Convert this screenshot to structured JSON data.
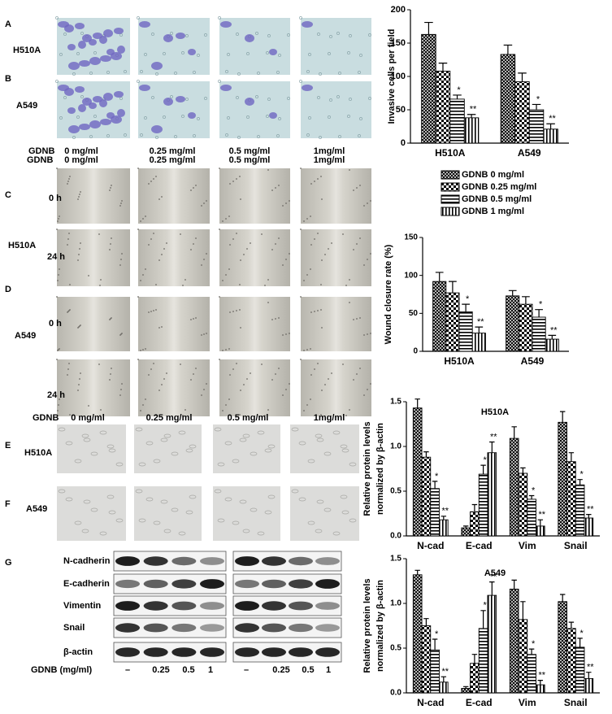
{
  "invasion": {
    "panels": [
      "A",
      "B"
    ],
    "rows": [
      "H510A",
      "A549"
    ],
    "dose_label": "GDNB",
    "doses": [
      "0 mg/ml",
      "0.25 mg/ml",
      "0.5 mg/ml",
      "1mg/ml"
    ]
  },
  "wound": {
    "panels": [
      "C",
      "D"
    ],
    "dose_label": "GDNB",
    "doses": [
      "0 mg/ml",
      "0.25 mg/ml",
      "0.5 mg/ml",
      "1mg/ml"
    ],
    "groups": [
      {
        "name": "H510A",
        "rows": [
          "0 h",
          "24 h"
        ]
      },
      {
        "name": "A549",
        "rows": [
          "0 h",
          "24 h"
        ]
      }
    ]
  },
  "morphology": {
    "panels": [
      "E",
      "F"
    ],
    "rows": [
      "H510A",
      "A549"
    ],
    "dose_label": "GDNB",
    "doses": [
      "0 mg/ml",
      "0.25 mg/ml",
      "0.5 mg/ml",
      "1mg/ml"
    ]
  },
  "western": {
    "panel": "G",
    "proteins": [
      "N-cadherin",
      "E-cadherin",
      "Vimentin",
      "Snail",
      "β-actin"
    ],
    "dose_label": "GDNB (mg/ml)",
    "doses": [
      "–",
      "0.25",
      "0.5",
      "1",
      "–",
      "0.25",
      "0.5",
      "1"
    ]
  },
  "chart_data": [
    {
      "type": "bar",
      "ylabel": [
        "Invasive cells per field"
      ],
      "categories": [
        "H510A",
        "A549"
      ],
      "ylim": [
        0,
        200
      ],
      "yticks": [
        0,
        50,
        100,
        150,
        200
      ],
      "series": [
        {
          "name": "GDNB 0 mg/ml",
          "color": "#000000",
          "pattern": "crosshatch",
          "values": [
            163,
            133
          ],
          "errors": [
            18,
            14
          ]
        },
        {
          "name": "GDNB 0.25 mg/ml",
          "color": "#000000",
          "pattern": "checker",
          "values": [
            108,
            92
          ],
          "errors": [
            12,
            13
          ]
        },
        {
          "name": "GDNB 0.5 mg/ml",
          "color": "#000000",
          "pattern": "hstripes",
          "values": [
            66,
            50
          ],
          "errors": [
            6,
            8
          ],
          "stars": [
            "*",
            "*"
          ]
        },
        {
          "name": "GDNB 1 mg/ml",
          "color": "#000000",
          "pattern": "vstripes",
          "values": [
            38,
            21
          ],
          "errors": [
            5,
            8
          ],
          "stars": [
            "**",
            "**"
          ]
        }
      ]
    },
    {
      "type": "bar",
      "ylabel": [
        "Wound closure rate (%)"
      ],
      "categories": [
        "H510A",
        "A549"
      ],
      "ylim": [
        0,
        150
      ],
      "yticks": [
        0,
        50,
        100,
        150
      ],
      "series": [
        {
          "color": "#000000",
          "pattern": "crosshatch",
          "values": [
            92,
            73
          ],
          "errors": [
            12,
            7
          ]
        },
        {
          "color": "#000000",
          "pattern": "checker",
          "values": [
            77,
            62
          ],
          "errors": [
            15,
            10
          ]
        },
        {
          "color": "#000000",
          "pattern": "hstripes",
          "values": [
            52,
            45
          ],
          "errors": [
            10,
            10
          ],
          "stars": [
            "*",
            "*"
          ]
        },
        {
          "color": "#000000",
          "pattern": "vstripes",
          "values": [
            24,
            16
          ],
          "errors": [
            8,
            5
          ],
          "stars": [
            "**",
            "**"
          ]
        }
      ]
    },
    {
      "type": "bar",
      "title": "H510A",
      "ylabel": [
        "Relative protein levels",
        "normalized by β-actin"
      ],
      "categories": [
        "N-cad",
        "E-cad",
        "Vim",
        "Snail"
      ],
      "ylim": [
        0,
        1.5
      ],
      "yticks": [
        {
          "value": 0,
          "label": "0.0"
        },
        0.5,
        {
          "value": 1,
          "label": "1.0"
        },
        1.5
      ],
      "series": [
        {
          "color": "#000000",
          "pattern": "crosshatch",
          "values": [
            1.43,
            0.09,
            1.09,
            1.27
          ],
          "errors": [
            0.1,
            0.02,
            0.13,
            0.12
          ]
        },
        {
          "color": "#000000",
          "pattern": "checker",
          "values": [
            0.88,
            0.27,
            0.7,
            0.83
          ],
          "errors": [
            0.06,
            0.08,
            0.06,
            0.1
          ]
        },
        {
          "color": "#000000",
          "pattern": "hstripes",
          "values": [
            0.53,
            0.69,
            0.41,
            0.57
          ],
          "errors": [
            0.08,
            0.1,
            0.04,
            0.06
          ],
          "stars": [
            "*",
            "*",
            "*",
            "*"
          ]
        },
        {
          "color": "#000000",
          "pattern": "vstripes",
          "values": [
            0.18,
            0.93,
            0.11,
            0.2
          ],
          "errors": [
            0.04,
            0.12,
            0.07,
            0.04
          ],
          "stars": [
            "**",
            "**",
            "**",
            "**"
          ]
        }
      ]
    },
    {
      "type": "bar",
      "title": "A549",
      "ylabel": [
        "Relative protein levels",
        "normalized by β-actin"
      ],
      "categories": [
        "N-cad",
        "E-cad",
        "Vim",
        "Snail"
      ],
      "ylim": [
        0,
        1.5
      ],
      "yticks": [
        {
          "value": 0,
          "label": "0.0"
        },
        0.5,
        {
          "value": 1,
          "label": "1.0"
        },
        1.5
      ],
      "series": [
        {
          "color": "#000000",
          "pattern": "crosshatch",
          "values": [
            1.32,
            0.05,
            1.16,
            1.02
          ],
          "errors": [
            0.05,
            0.02,
            0.1,
            0.08
          ]
        },
        {
          "color": "#000000",
          "pattern": "checker",
          "values": [
            0.75,
            0.33,
            0.82,
            0.72
          ],
          "errors": [
            0.08,
            0.1,
            0.2,
            0.07
          ]
        },
        {
          "color": "#000000",
          "pattern": "hstripes",
          "values": [
            0.48,
            0.72,
            0.43,
            0.51
          ],
          "errors": [
            0.12,
            0.2,
            0.06,
            0.1
          ],
          "stars": [
            "*",
            "*",
            "*",
            "*"
          ]
        },
        {
          "color": "#000000",
          "pattern": "vstripes",
          "values": [
            0.12,
            1.09,
            0.09,
            0.16
          ],
          "errors": [
            0.06,
            0.15,
            0.05,
            0.07
          ],
          "stars": [
            "**",
            "**",
            "**",
            "**"
          ]
        }
      ]
    }
  ]
}
